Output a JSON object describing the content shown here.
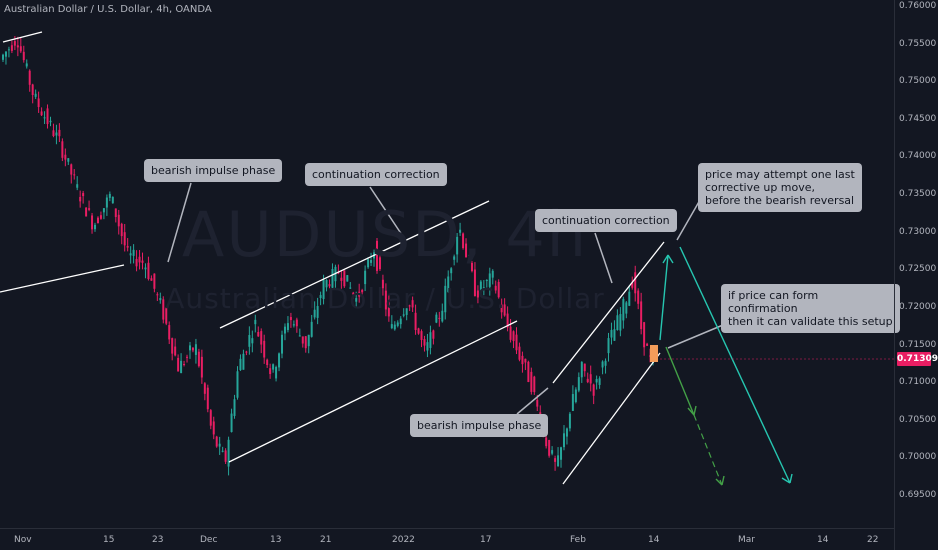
{
  "header": {
    "title": "Australian Dollar / U.S. Dollar, 4h, OANDA"
  },
  "watermark": {
    "symbol": "AUDUSD, 4h",
    "name": "Australian Dollar / U.S. Dollar"
  },
  "annotations": {
    "bearish_impulse_1": "bearish impulse phase",
    "continuation_1": "continuation correction",
    "continuation_2": "continuation correction",
    "bearish_impulse_2": "bearish impulse phase",
    "last_corrective": "price may attempt one last\ncorrective up move,\nbefore the bearish reversal",
    "confirmation": "if price can form\nconfirmation\nthen it can validate this setup"
  },
  "price_axis": {
    "labels": [
      "0.76000",
      "0.75500",
      "0.75000",
      "0.74500",
      "0.74000",
      "0.73500",
      "0.73000",
      "0.72500",
      "0.72000",
      "0.71500",
      "0.71000",
      "0.70500",
      "0.70000",
      "0.69500"
    ]
  },
  "current_price": "0.71309",
  "time_axis": {
    "labels": [
      "Nov",
      "15",
      "23",
      "Dec",
      "13",
      "21",
      "2022",
      "17",
      "Feb",
      "14",
      "Mar",
      "14",
      "22"
    ]
  },
  "colors": {
    "up": "#26a69a",
    "down": "#e91e63",
    "background": "#131722",
    "annotation": "#b2b5be",
    "projection_teal": "#26c6b0",
    "projection_green": "#43a047",
    "marker": "#f39c5a"
  },
  "chart_data": {
    "type": "candlestick",
    "title": "Australian Dollar / U.S. Dollar, 4h, OANDA",
    "ylim": [
      0.693,
      0.7615
    ],
    "y_ticks": [
      0.695,
      0.7,
      0.705,
      0.71,
      0.715,
      0.72,
      0.725,
      0.73,
      0.735,
      0.74,
      0.745,
      0.75,
      0.755,
      0.76
    ],
    "x_ticks": [
      "Nov",
      "15",
      "23",
      "Dec",
      "13",
      "21",
      "2022",
      "17",
      "Feb",
      "14",
      "Mar",
      "14",
      "22"
    ],
    "price_path": [
      [
        0,
        0.753
      ],
      [
        0.02,
        0.756
      ],
      [
        0.04,
        0.748
      ],
      [
        0.07,
        0.742
      ],
      [
        0.09,
        0.736
      ],
      [
        0.11,
        0.731
      ],
      [
        0.13,
        0.735
      ],
      [
        0.15,
        0.727
      ],
      [
        0.17,
        0.726
      ],
      [
        0.19,
        0.72
      ],
      [
        0.21,
        0.712
      ],
      [
        0.23,
        0.715
      ],
      [
        0.25,
        0.703
      ],
      [
        0.265,
        0.6995
      ],
      [
        0.28,
        0.712
      ],
      [
        0.3,
        0.718
      ],
      [
        0.32,
        0.711
      ],
      [
        0.34,
        0.719
      ],
      [
        0.36,
        0.715
      ],
      [
        0.38,
        0.723
      ],
      [
        0.4,
        0.725
      ],
      [
        0.42,
        0.721
      ],
      [
        0.44,
        0.728
      ],
      [
        0.46,
        0.717
      ],
      [
        0.48,
        0.721
      ],
      [
        0.5,
        0.714
      ],
      [
        0.52,
        0.72
      ],
      [
        0.54,
        0.731
      ],
      [
        0.56,
        0.722
      ],
      [
        0.58,
        0.724
      ],
      [
        0.595,
        0.718
      ],
      [
        0.61,
        0.714
      ],
      [
        0.625,
        0.71
      ],
      [
        0.64,
        0.703
      ],
      [
        0.655,
        0.6985
      ],
      [
        0.67,
        0.706
      ],
      [
        0.685,
        0.712
      ],
      [
        0.7,
        0.709
      ],
      [
        0.715,
        0.715
      ],
      [
        0.73,
        0.719
      ],
      [
        0.745,
        0.724
      ],
      [
        0.755,
        0.717
      ],
      [
        0.765,
        0.713
      ]
    ],
    "current_price": 0.71309
  }
}
